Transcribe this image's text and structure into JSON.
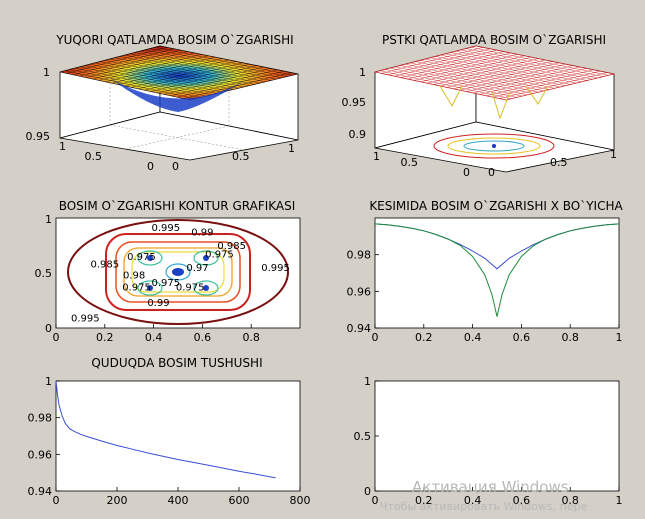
{
  "figure": {
    "background": "#d4d0c8"
  },
  "chart_data": [
    {
      "id": "p1",
      "type": "surface3d",
      "title": "YUQORI QATLAMDA BOSIM O`ZGARISHI",
      "z_ticks": [
        "1",
        "0.95"
      ],
      "x_ticks": [
        "1",
        "0.5",
        "0"
      ],
      "y_ticks": [
        "0",
        "0.5",
        "1"
      ],
      "zlim": [
        0.95,
        1
      ],
      "colormap": "jet"
    },
    {
      "id": "p2",
      "type": "mesh3d_with_contour",
      "title": "PSTKI QATLAMDA BOSIM O`ZGARISHI",
      "z_ticks": [
        "1",
        "0.95",
        "0.9"
      ],
      "x_ticks": [
        "1",
        "0.5",
        "0"
      ],
      "y_ticks": [
        "0",
        "0.5",
        "1"
      ],
      "zlim": [
        0.9,
        1
      ],
      "mesh_color": "#cc2222"
    },
    {
      "id": "p3",
      "type": "contour",
      "title": "BOSIM O`ZGARISHI KONTUR GRAFIKASI",
      "x_ticks": [
        "0",
        "0.2",
        "0.4",
        "0.6",
        "0.8"
      ],
      "y_ticks": [
        "1",
        "0.5",
        "0"
      ],
      "xlim": [
        0,
        1
      ],
      "ylim": [
        0,
        1
      ],
      "contour_labels": [
        {
          "text": "0.995",
          "x": 0.45,
          "y": 0.88
        },
        {
          "text": "0.99",
          "x": 0.6,
          "y": 0.84
        },
        {
          "text": "0.985",
          "x": 0.72,
          "y": 0.72
        },
        {
          "text": "0.975",
          "x": 0.67,
          "y": 0.64
        },
        {
          "text": "0.985",
          "x": 0.2,
          "y": 0.55
        },
        {
          "text": "0.98",
          "x": 0.32,
          "y": 0.45
        },
        {
          "text": "0.975",
          "x": 0.35,
          "y": 0.62
        },
        {
          "text": "0.97",
          "x": 0.58,
          "y": 0.52
        },
        {
          "text": "0.975",
          "x": 0.33,
          "y": 0.34
        },
        {
          "text": "0.975",
          "x": 0.45,
          "y": 0.38
        },
        {
          "text": "0.975",
          "x": 0.55,
          "y": 0.34
        },
        {
          "text": "0.99",
          "x": 0.42,
          "y": 0.2
        },
        {
          "text": "0.995",
          "x": 0.9,
          "y": 0.52
        },
        {
          "text": "0.995",
          "x": 0.12,
          "y": 0.06
        }
      ]
    },
    {
      "id": "p4",
      "type": "line",
      "title": "KESIMIDA BOSIM O`ZGARISHI X BO`YICHA",
      "x_ticks": [
        "0",
        "0.2",
        "0.4",
        "0.6",
        "0.8",
        "1"
      ],
      "y_ticks": [
        "0.98",
        "0.96",
        "0.94"
      ],
      "xlim": [
        0,
        1
      ],
      "ylim": [
        0.94,
        1.0
      ],
      "series": [
        {
          "color": "#3b4fd8",
          "x": [
            0,
            0.05,
            0.1,
            0.15,
            0.2,
            0.25,
            0.3,
            0.35,
            0.4,
            0.45,
            0.5,
            0.55,
            0.6,
            0.65,
            0.7,
            0.75,
            0.8,
            0.85,
            0.9,
            0.95,
            1
          ],
          "y": [
            0.9968,
            0.9963,
            0.9955,
            0.9944,
            0.993,
            0.991,
            0.9885,
            0.9855,
            0.982,
            0.978,
            0.9723,
            0.978,
            0.982,
            0.9855,
            0.9885,
            0.991,
            0.993,
            0.9944,
            0.9955,
            0.9963,
            0.9968
          ]
        },
        {
          "color": "#1d8a3a",
          "x": [
            0,
            0.05,
            0.1,
            0.15,
            0.2,
            0.25,
            0.3,
            0.35,
            0.4,
            0.45,
            0.48,
            0.5,
            0.52,
            0.55,
            0.6,
            0.65,
            0.7,
            0.75,
            0.8,
            0.85,
            0.9,
            0.95,
            1
          ],
          "y": [
            0.9968,
            0.9963,
            0.9955,
            0.9944,
            0.993,
            0.991,
            0.9885,
            0.985,
            0.979,
            0.969,
            0.958,
            0.9462,
            0.958,
            0.969,
            0.979,
            0.985,
            0.9885,
            0.991,
            0.993,
            0.9944,
            0.9955,
            0.9963,
            0.9968
          ]
        }
      ]
    },
    {
      "id": "p5",
      "type": "line",
      "title": "QUDUQDA BOSIM TUSHUSHI",
      "x_ticks": [
        "0",
        "200",
        "400",
        "600",
        "800"
      ],
      "y_ticks": [
        "1",
        "0.98",
        "0.96",
        "0.94"
      ],
      "xlim": [
        0,
        800
      ],
      "ylim": [
        0.94,
        1.0
      ],
      "series": [
        {
          "color": "#3b4fd8",
          "x": [
            0,
            2,
            5,
            10,
            20,
            30,
            45,
            60,
            80,
            100,
            150,
            200,
            250,
            300,
            350,
            400,
            450,
            500,
            550,
            600,
            650,
            700,
            720
          ],
          "y": [
            1.0,
            0.997,
            0.9925,
            0.987,
            0.981,
            0.977,
            0.974,
            0.9725,
            0.971,
            0.9698,
            0.9672,
            0.9648,
            0.9628,
            0.9608,
            0.959,
            0.9572,
            0.9556,
            0.954,
            0.9524,
            0.9508,
            0.9493,
            0.9478,
            0.9472
          ]
        }
      ]
    },
    {
      "id": "p6",
      "type": "line",
      "title": "",
      "x_ticks": [
        "0",
        "0.2",
        "0.4",
        "0.6",
        "0.8",
        "1"
      ],
      "y_ticks": [
        "1",
        "0.5",
        "0"
      ],
      "xlim": [
        0,
        1
      ],
      "ylim": [
        0,
        1
      ],
      "series": []
    }
  ],
  "watermark": {
    "line1": "Активация Windows",
    "line2": "Чтобы активировать Windows, пере"
  }
}
